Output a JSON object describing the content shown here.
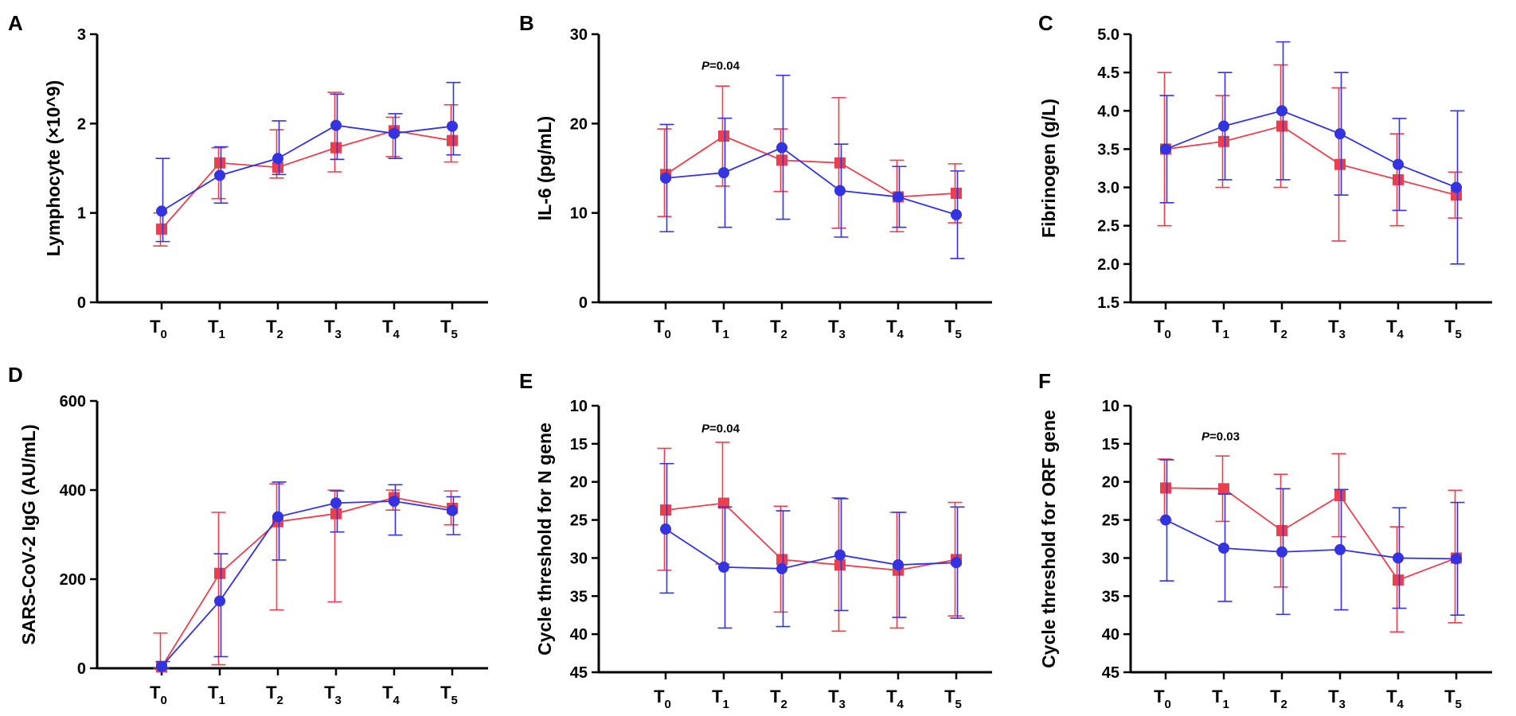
{
  "figure": {
    "background": "#ffffff",
    "series_colors": {
      "red": "#e8404e",
      "blue": "#3333e0"
    }
  },
  "chart_data": [
    {
      "panel": "A",
      "type": "line",
      "title": "",
      "xlabel": "",
      "ylabel": "Lymphocyte (×10^9)",
      "categories": [
        "T0",
        "T1",
        "T2",
        "T3",
        "T4",
        "T5"
      ],
      "category_labels": [
        {
          "base": "T",
          "sub": "0"
        },
        {
          "base": "T",
          "sub": "1"
        },
        {
          "base": "T",
          "sub": "2"
        },
        {
          "base": "T",
          "sub": "3"
        },
        {
          "base": "T",
          "sub": "4"
        },
        {
          "base": "T",
          "sub": "5"
        }
      ],
      "ylim": [
        0,
        3
      ],
      "reversed": false,
      "yticks": [
        "0",
        "1",
        "2",
        "3"
      ],
      "ytick_values": [
        0,
        1,
        2,
        3
      ],
      "series": [
        {
          "name": "red squares",
          "color": "#e8404e",
          "marker": "square",
          "values": [
            0.82,
            1.56,
            1.51,
            1.73,
            1.92,
            1.81
          ],
          "err_low": [
            0.63,
            1.16,
            1.39,
            1.46,
            1.63,
            1.57
          ],
          "err_high": [
            1.0,
            1.73,
            1.93,
            2.35,
            2.07,
            2.21
          ]
        },
        {
          "name": "blue circles",
          "color": "#3333e0",
          "marker": "circle",
          "values": [
            1.02,
            1.42,
            1.61,
            1.98,
            1.89,
            1.97
          ],
          "err_low": [
            0.68,
            1.11,
            1.43,
            1.6,
            1.61,
            1.65
          ],
          "err_high": [
            1.61,
            1.74,
            2.03,
            2.33,
            2.11,
            2.46
          ]
        }
      ],
      "annotations": []
    },
    {
      "panel": "B",
      "type": "line",
      "title": "",
      "xlabel": "",
      "ylabel": "IL-6 (pg/mL)",
      "categories": [
        "T0",
        "T1",
        "T2",
        "T3",
        "T4",
        "T5"
      ],
      "category_labels": [
        {
          "base": "T",
          "sub": "0"
        },
        {
          "base": "T",
          "sub": "1"
        },
        {
          "base": "T",
          "sub": "2"
        },
        {
          "base": "T",
          "sub": "3"
        },
        {
          "base": "T",
          "sub": "4"
        },
        {
          "base": "T",
          "sub": "5"
        }
      ],
      "ylim": [
        0,
        30
      ],
      "reversed": false,
      "yticks": [
        "0",
        "10",
        "20",
        "30"
      ],
      "ytick_values": [
        0,
        10,
        20,
        30
      ],
      "series": [
        {
          "name": "red squares",
          "color": "#e8404e",
          "marker": "square",
          "values": [
            14.3,
            18.6,
            15.9,
            15.6,
            11.8,
            12.2
          ],
          "err_low": [
            9.6,
            13.0,
            12.4,
            8.3,
            7.9,
            8.9
          ],
          "err_high": [
            19.4,
            24.2,
            19.4,
            22.9,
            15.9,
            15.5
          ]
        },
        {
          "name": "blue circles",
          "color": "#3333e0",
          "marker": "circle",
          "values": [
            13.9,
            14.5,
            17.3,
            12.5,
            11.8,
            9.8
          ],
          "err_low": [
            7.9,
            8.4,
            9.3,
            7.3,
            8.4,
            4.9
          ],
          "err_high": [
            19.9,
            20.6,
            25.4,
            17.7,
            15.2,
            14.7
          ]
        }
      ],
      "annotations": [
        {
          "label": "P=0.04",
          "category": "T1",
          "y": 26.5
        }
      ]
    },
    {
      "panel": "C",
      "type": "line",
      "title": "",
      "xlabel": "",
      "ylabel": "Fibrinogen (g/L)",
      "categories": [
        "T0",
        "T1",
        "T2",
        "T3",
        "T4",
        "T5"
      ],
      "category_labels": [
        {
          "base": "T",
          "sub": "0"
        },
        {
          "base": "T",
          "sub": "1"
        },
        {
          "base": "T",
          "sub": "2"
        },
        {
          "base": "T",
          "sub": "3"
        },
        {
          "base": "T",
          "sub": "4"
        },
        {
          "base": "T",
          "sub": "5"
        }
      ],
      "ylim": [
        1.5,
        5.0
      ],
      "reversed": false,
      "yticks": [
        "1.5",
        "2.0",
        "2.5",
        "3.0",
        "3.5",
        "4.0",
        "4.5",
        "5.0"
      ],
      "ytick_values": [
        1.5,
        2.0,
        2.5,
        3.0,
        3.5,
        4.0,
        4.5,
        5.0
      ],
      "series": [
        {
          "name": "red squares",
          "color": "#e8404e",
          "marker": "square",
          "values": [
            3.5,
            3.6,
            3.8,
            3.3,
            3.1,
            2.9
          ],
          "err_low": [
            2.5,
            3.0,
            3.0,
            2.3,
            2.5,
            2.6
          ],
          "err_high": [
            4.5,
            4.2,
            4.6,
            4.3,
            3.7,
            3.2
          ]
        },
        {
          "name": "blue circles",
          "color": "#3333e0",
          "marker": "circle",
          "values": [
            3.5,
            3.8,
            4.0,
            3.7,
            3.3,
            3.0
          ],
          "err_low": [
            2.8,
            3.1,
            3.1,
            2.9,
            2.7,
            2.0
          ],
          "err_high": [
            4.2,
            4.5,
            4.9,
            4.5,
            3.9,
            4.0
          ]
        }
      ],
      "annotations": []
    },
    {
      "panel": "D",
      "type": "line",
      "title": "",
      "xlabel": "",
      "ylabel": "SARS-CoV-2 IgG (AU/mL)",
      "categories": [
        "T0",
        "T1",
        "T2",
        "T3",
        "T4",
        "T5"
      ],
      "category_labels": [
        {
          "base": "T",
          "sub": "0"
        },
        {
          "base": "T",
          "sub": "1"
        },
        {
          "base": "T",
          "sub": "2"
        },
        {
          "base": "T",
          "sub": "3"
        },
        {
          "base": "T",
          "sub": "4"
        },
        {
          "base": "T",
          "sub": "5"
        }
      ],
      "ylim": [
        0,
        600
      ],
      "reversed": false,
      "yticks": [
        "0",
        "200",
        "400",
        "600"
      ],
      "ytick_values": [
        0,
        200,
        400,
        600
      ],
      "series": [
        {
          "name": "red squares",
          "color": "#e8404e",
          "marker": "square",
          "values": [
            3,
            213,
            329,
            347,
            383,
            359
          ],
          "err_low": [
            0,
            8,
            131,
            149,
            355,
            322
          ],
          "err_high": [
            79,
            350,
            414,
            400,
            400,
            398
          ]
        },
        {
          "name": "blue circles",
          "color": "#3333e0",
          "marker": "circle",
          "values": [
            4,
            151,
            340,
            371,
            375,
            354
          ],
          "err_low": [
            0,
            26,
            243,
            306,
            299,
            300
          ],
          "err_high": [
            15,
            257,
            418,
            398,
            412,
            385
          ]
        }
      ],
      "annotations": []
    },
    {
      "panel": "E",
      "type": "line",
      "title": "",
      "xlabel": "",
      "ylabel": "Cycle threshold for N gene",
      "categories": [
        "T0",
        "T1",
        "T2",
        "T3",
        "T4",
        "T5"
      ],
      "category_labels": [
        {
          "base": "T",
          "sub": "0"
        },
        {
          "base": "T",
          "sub": "1"
        },
        {
          "base": "T",
          "sub": "2"
        },
        {
          "base": "T",
          "sub": "3"
        },
        {
          "base": "T",
          "sub": "4"
        },
        {
          "base": "T",
          "sub": "5"
        }
      ],
      "ylim": [
        10,
        45
      ],
      "reversed": true,
      "yticks": [
        "10",
        "15",
        "20",
        "25",
        "30",
        "35",
        "40",
        "45"
      ],
      "ytick_values": [
        10,
        15,
        20,
        25,
        30,
        35,
        40,
        45
      ],
      "series": [
        {
          "name": "red squares",
          "color": "#e8404e",
          "marker": "square",
          "values": [
            23.7,
            22.8,
            30.2,
            30.9,
            31.6,
            30.2
          ],
          "err_low": [
            15.6,
            14.8,
            23.2,
            22.1,
            24.0,
            22.7
          ],
          "err_high": [
            31.6,
            30.8,
            37.1,
            39.6,
            39.2,
            37.6
          ]
        },
        {
          "name": "blue circles",
          "color": "#3333e0",
          "marker": "circle",
          "values": [
            26.2,
            31.2,
            31.4,
            29.6,
            30.9,
            30.6
          ],
          "err_low": [
            17.6,
            23.3,
            23.8,
            22.2,
            24.0,
            23.3
          ],
          "err_high": [
            34.6,
            39.2,
            39.0,
            36.9,
            37.8,
            37.9
          ]
        }
      ],
      "annotations": [
        {
          "label": "P=0.04",
          "category": "T1",
          "y": 13.0
        }
      ]
    },
    {
      "panel": "F",
      "type": "line",
      "title": "",
      "xlabel": "",
      "ylabel": "Cycle threshold for ORF gene",
      "categories": [
        "T0",
        "T1",
        "T2",
        "T3",
        "T4",
        "T5"
      ],
      "category_labels": [
        {
          "base": "T",
          "sub": "0"
        },
        {
          "base": "T",
          "sub": "1"
        },
        {
          "base": "T",
          "sub": "2"
        },
        {
          "base": "T",
          "sub": "3"
        },
        {
          "base": "T",
          "sub": "4"
        },
        {
          "base": "T",
          "sub": "5"
        }
      ],
      "ylim": [
        10,
        45
      ],
      "reversed": true,
      "yticks": [
        "10",
        "15",
        "20",
        "25",
        "30",
        "35",
        "40",
        "45"
      ],
      "ytick_values": [
        10,
        15,
        20,
        25,
        30,
        35,
        40,
        45
      ],
      "series": [
        {
          "name": "red squares",
          "color": "#e8404e",
          "marker": "square",
          "values": [
            20.8,
            20.9,
            26.4,
            21.8,
            32.9,
            30.0
          ],
          "err_low": [
            17.0,
            16.6,
            19.0,
            16.3,
            25.9,
            21.1
          ],
          "err_high": [
            25.0,
            25.2,
            33.8,
            27.2,
            39.7,
            38.5
          ]
        },
        {
          "name": "blue circles",
          "color": "#3333e0",
          "marker": "circle",
          "values": [
            25.0,
            28.7,
            29.2,
            28.9,
            30.0,
            30.1
          ],
          "err_low": [
            17.1,
            21.6,
            20.9,
            21.0,
            23.4,
            22.7
          ],
          "err_high": [
            33.0,
            35.7,
            37.4,
            36.8,
            36.6,
            37.5
          ]
        }
      ],
      "annotations": [
        {
          "label": "P=0.03",
          "category": "T1",
          "y": 14.0
        }
      ]
    }
  ]
}
